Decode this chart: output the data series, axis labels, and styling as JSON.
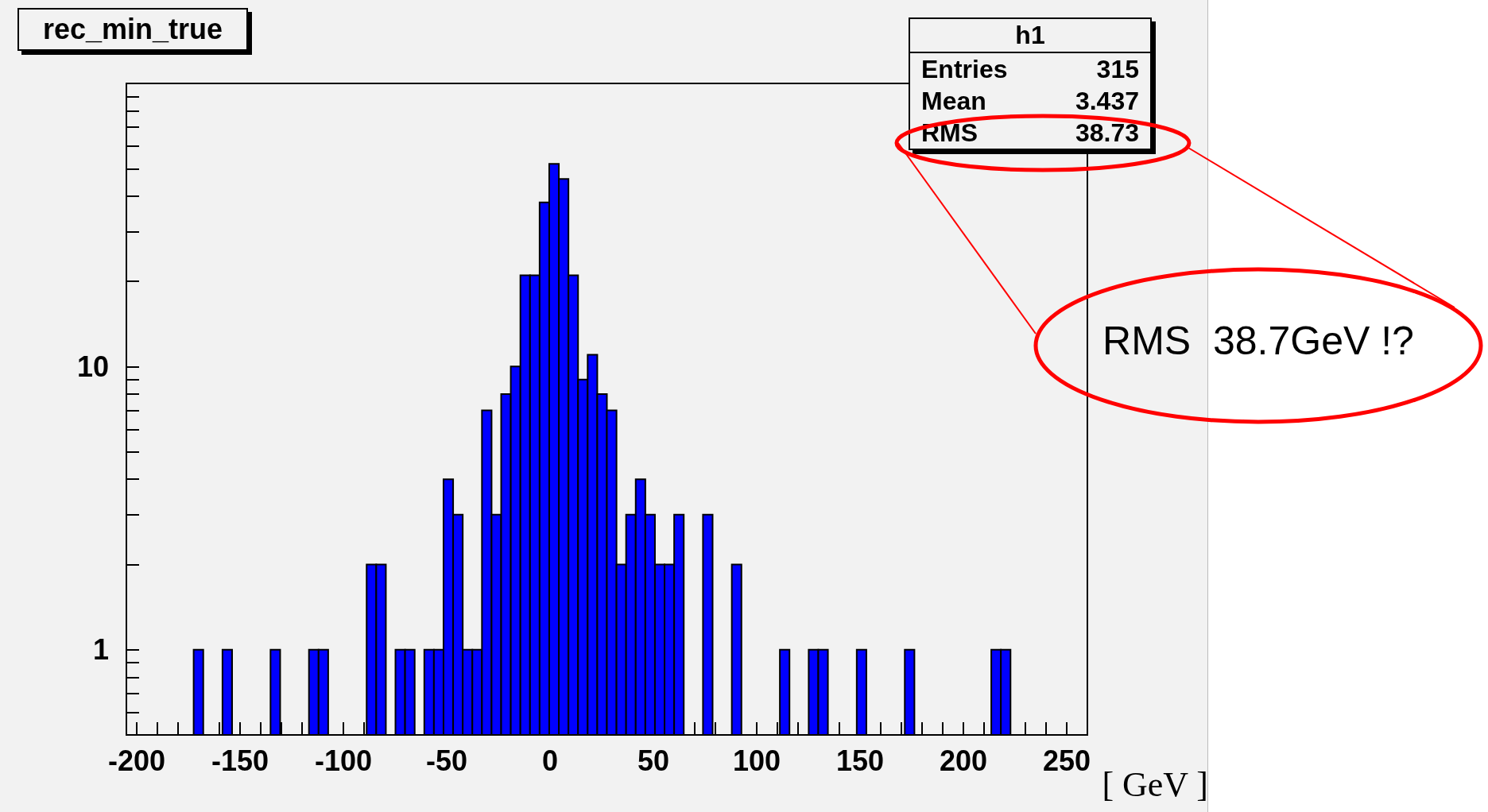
{
  "chart_data": {
    "type": "histogram",
    "title": "rec_min_true",
    "xlabel": "[ GeV ]",
    "annotations": [
      "h1",
      "Entries 315",
      "Mean 3.437",
      "RMS 38.73",
      "RMS  38.7GeV !?"
    ],
    "color": "#0000ff",
    "log": "y",
    "bins": [
      -205,
      -200.35,
      -195.7,
      -191.05,
      -186.4,
      -181.75,
      -177.1,
      -172.45,
      -167.8,
      -163.15,
      -158.5,
      -153.85,
      -149.2,
      -144.55,
      -139.9,
      -135.25,
      -130.6,
      -125.95,
      -121.3,
      -116.65,
      -112,
      -107.35,
      -102.7,
      -98.05,
      -93.4,
      -88.75,
      -84.1,
      -79.45,
      -74.8,
      -70.15,
      -65.5,
      -60.85,
      -56.2,
      -51.55,
      -46.9,
      -42.25,
      -37.6,
      -32.95,
      -28.3,
      -23.65,
      -19,
      -14.35,
      -9.7,
      -5.05,
      -0.4,
      4.25,
      8.9,
      13.55,
      18.2,
      22.85,
      27.5,
      32.15,
      36.8,
      41.45,
      46.1,
      50.75,
      55.4,
      60.05,
      64.7,
      69.35,
      74,
      78.65,
      83.3,
      87.95,
      92.6,
      97.25,
      101.9,
      106.55,
      111.2,
      115.85,
      120.5,
      125.15,
      129.8,
      134.45,
      139.1,
      143.75,
      148.4,
      153.05,
      157.7,
      162.35,
      167,
      171.65,
      176.3,
      180.95,
      185.6,
      190.25,
      194.9,
      199.55,
      204.2,
      208.85,
      213.5,
      218.15,
      222.8,
      227.45,
      232.1,
      236.75,
      241.4,
      246.05,
      250.7,
      255.35,
      260
    ],
    "values": [
      null,
      null,
      null,
      null,
      null,
      null,
      null,
      1,
      null,
      null,
      1,
      null,
      null,
      null,
      null,
      1,
      null,
      null,
      null,
      1,
      1,
      null,
      null,
      null,
      null,
      2,
      2,
      null,
      1,
      1,
      null,
      1,
      1,
      4,
      3,
      1,
      1,
      7,
      3,
      8,
      10,
      21,
      21,
      38,
      52,
      46,
      21,
      9,
      11,
      8,
      7,
      2,
      3,
      4,
      3,
      2,
      2,
      3,
      null,
      null,
      3,
      null,
      null,
      2,
      null,
      null,
      null,
      null,
      1,
      null,
      null,
      1,
      1,
      null,
      null,
      null,
      1,
      null,
      null,
      null,
      null,
      1,
      null,
      null,
      null,
      null,
      null,
      null,
      null,
      null,
      1,
      1,
      null,
      null,
      null,
      null,
      null,
      null,
      null,
      null
    ],
    "xlim": [
      -205,
      260
    ],
    "xticks": [
      -200,
      {
        "value": -190,
        "label": null
      },
      {
        "value": -180,
        "label": null
      },
      {
        "value": -170,
        "label": null
      },
      {
        "value": -160,
        "label": null
      },
      -150,
      {
        "value": -140,
        "label": null
      },
      {
        "value": -130,
        "label": null
      },
      {
        "value": -120,
        "label": null
      },
      {
        "value": -110,
        "label": null
      },
      -100,
      {
        "value": -90,
        "label": null
      },
      {
        "value": -80,
        "label": null
      },
      {
        "value": -70,
        "label": null
      },
      {
        "value": -60,
        "label": null
      },
      -50,
      {
        "value": -40,
        "label": null
      },
      {
        "value": -30,
        "label": null
      },
      {
        "value": -20,
        "label": null
      },
      {
        "value": -10,
        "label": null
      },
      0,
      {
        "value": 10,
        "label": null
      },
      {
        "value": 20,
        "label": null
      },
      {
        "value": 30,
        "label": null
      },
      {
        "value": 40,
        "label": null
      },
      50,
      {
        "value": 60,
        "label": null
      },
      {
        "value": 70,
        "label": null
      },
      {
        "value": 80,
        "label": null
      },
      {
        "value": 90,
        "label": null
      },
      100,
      {
        "value": 110,
        "label": null
      },
      {
        "value": 120,
        "label": null
      },
      {
        "value": 130,
        "label": null
      },
      {
        "value": 140,
        "label": null
      },
      150,
      {
        "value": 160,
        "label": null
      },
      {
        "value": 170,
        "label": null
      },
      {
        "value": 180,
        "label": null
      },
      {
        "value": 190,
        "label": null
      },
      200,
      {
        "value": 210,
        "label": null
      },
      {
        "value": 220,
        "label": null
      },
      {
        "value": 230,
        "label": null
      },
      {
        "value": 240,
        "label": null
      },
      250
    ],
    "ylim": [
      0.5,
      100
    ],
    "yticks": [
      {
        "value": 0.5,
        "label": null
      },
      {
        "value": 0.6,
        "label": null
      },
      {
        "value": 0.7,
        "label": null
      },
      {
        "value": 0.8,
        "label": null
      },
      {
        "value": 0.9,
        "label": null
      },
      1,
      {
        "value": 2,
        "label": null
      },
      {
        "value": 3,
        "label": null
      },
      {
        "value": 4,
        "label": null
      },
      {
        "value": 5,
        "label": null
      },
      {
        "value": 6,
        "label": null
      },
      {
        "value": 7,
        "label": null
      },
      {
        "value": 8,
        "label": null
      },
      {
        "value": 9,
        "label": null
      },
      10,
      {
        "value": 20,
        "label": null
      },
      {
        "value": 30,
        "label": null
      },
      {
        "value": 40,
        "label": null
      },
      {
        "value": 50,
        "label": null
      },
      {
        "value": 60,
        "label": null
      },
      {
        "value": 70,
        "label": null
      },
      {
        "value": 80,
        "label": null
      },
      {
        "value": 90,
        "label": null
      }
    ]
  }
}
